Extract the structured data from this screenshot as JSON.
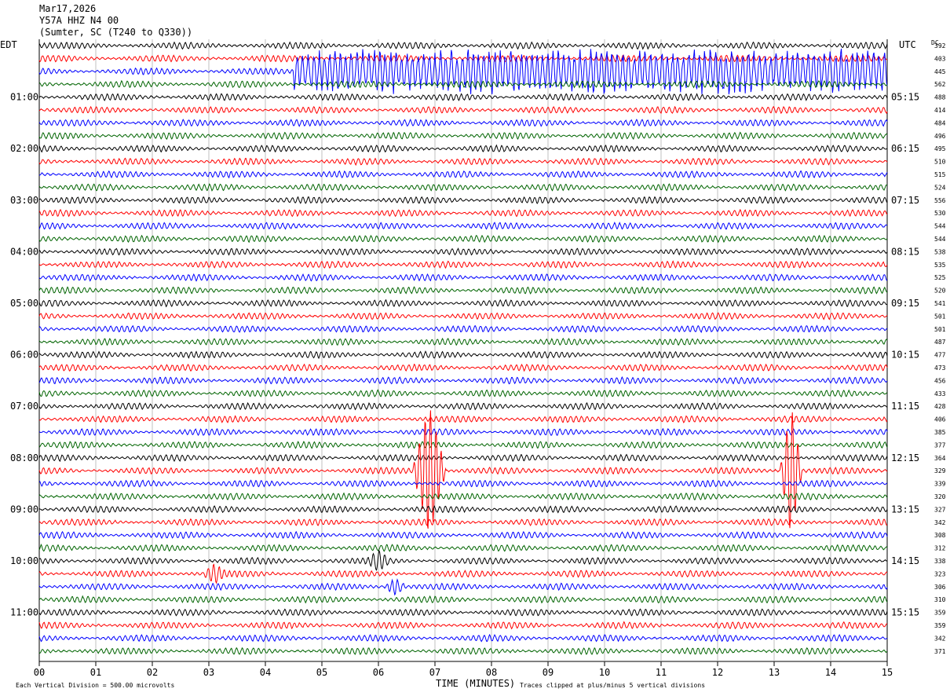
{
  "header": {
    "date": "Mar17,2026",
    "station": "Y57A HHZ N4 00",
    "location": "(Sumter, SC (T240 to Q330))"
  },
  "left_tz": "EDT",
  "right_tz": "UTC",
  "dc_label": "DC",
  "footer": {
    "scale_note": "Each Vertical Division =  500.00 microvolts",
    "clip_note": "Traces clipped at plus/minus 5 vertical divisions"
  },
  "colors": {
    "trace_cycle": [
      "#000000",
      "#ff0000",
      "#0000ff",
      "#006400"
    ]
  },
  "chart_data": {
    "type": "line",
    "title": "Y57A HHZ N4 00",
    "xlabel": "TIME (MINUTES)",
    "ylabel": "",
    "xlim": [
      0,
      15
    ],
    "x_ticks": [
      "00",
      "01",
      "02",
      "03",
      "04",
      "05",
      "06",
      "07",
      "08",
      "09",
      "10",
      "11",
      "12",
      "13",
      "14",
      "15"
    ],
    "left_hour_labels": [
      "01:00",
      "02:00",
      "03:00",
      "04:00",
      "05:00",
      "06:00",
      "07:00",
      "08:00",
      "09:00",
      "10:00",
      "11:00"
    ],
    "right_hour_labels": [
      "05:15",
      "06:15",
      "07:15",
      "08:15",
      "09:15",
      "10:15",
      "11:15",
      "12:15",
      "13:15",
      "14:15",
      "15:15"
    ],
    "traces_per_hour": 4,
    "dc_offsets": [
      392,
      403,
      445,
      562,
      488,
      414,
      484,
      496,
      495,
      510,
      515,
      524,
      556,
      530,
      544,
      544,
      538,
      535,
      525,
      520,
      541,
      501,
      501,
      487,
      477,
      473,
      456,
      433,
      428,
      406,
      385,
      377,
      364,
      329,
      339,
      320,
      327,
      342,
      308,
      312,
      338,
      323,
      306,
      310,
      359,
      359,
      342,
      371
    ],
    "events": [
      {
        "trace": 2,
        "start_min": 4.5,
        "end_min": 15.0,
        "amplitude": "large"
      },
      {
        "trace": 33,
        "start_min": 6.6,
        "end_min": 7.2,
        "amplitude": "clipped"
      },
      {
        "trace": 33,
        "start_min": 13.1,
        "end_min": 13.5,
        "amplitude": "clipped"
      },
      {
        "trace": 40,
        "start_min": 5.8,
        "end_min": 6.2,
        "amplitude": "medium"
      },
      {
        "trace": 41,
        "start_min": 2.9,
        "end_min": 3.3,
        "amplitude": "medium"
      },
      {
        "trace": 42,
        "start_min": 6.1,
        "end_min": 6.5,
        "amplitude": "medium"
      }
    ]
  }
}
